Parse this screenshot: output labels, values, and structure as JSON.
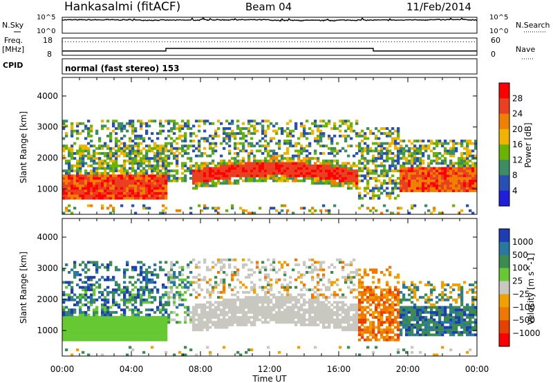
{
  "header": {
    "station": "Hankasalmi (fitACF)",
    "beam": "Beam 04",
    "date": "11/Feb/2014"
  },
  "labels": {
    "nsky": "N.Sky",
    "nsearch": "N.Search",
    "freq_line1": "Freq.",
    "freq_line2": "[MHz]",
    "nave": "Nave",
    "cpid": "CPID",
    "mode": "normal (fast stereo) 153",
    "slant_range": "Slant Range [km]",
    "time_ut": "Time UT"
  },
  "colors": {
    "power_scale": [
      "#1e1edc",
      "#2850b4",
      "#3c8c64",
      "#6ab400",
      "#f0b400",
      "#f08000",
      "#e84020",
      "#ff0000"
    ],
    "velocity_scale": [
      "#1e3cb4",
      "#2878a0",
      "#3c8c50",
      "#66c832",
      "#c8c8c0",
      "#f0a000",
      "#f07800",
      "#e84000",
      "#ff0000"
    ],
    "ground_scatter": "#c8c8c0"
  },
  "chart_data": [
    {
      "type": "line",
      "name": "noise",
      "left_ticks": [
        "10^5",
        "10^0"
      ],
      "right_ticks": [
        "10^5",
        "10^0"
      ],
      "x": [
        "00:00",
        "04:00",
        "08:00",
        "12:00",
        "16:00",
        "20:00",
        "00:00"
      ],
      "series": [
        {
          "name": "N.Sky",
          "values": [
            4.2,
            4.1,
            4.2,
            4.0,
            4.1,
            4.2,
            4.0
          ]
        },
        {
          "name": "N.Search",
          "values": [
            4.0,
            4.0,
            4.1,
            4.0,
            4.0,
            4.1,
            4.0
          ]
        }
      ]
    },
    {
      "type": "line",
      "name": "freq_nave",
      "left_ticks": [
        "18",
        "8"
      ],
      "right_ticks": [
        "60",
        "0"
      ],
      "x_hours": [
        0,
        6,
        6,
        18,
        18,
        24
      ],
      "freq_mhz": [
        10.5,
        10.5,
        12.0,
        12.0,
        10.5,
        10.5
      ],
      "nave": [
        40,
        40,
        40,
        40,
        40,
        40
      ]
    },
    {
      "type": "heatmap",
      "name": "power",
      "ylabel": "Slant Range [km]",
      "y_ticks": [
        1000,
        2000,
        3000,
        4000
      ],
      "ylim": [
        180,
        4600
      ],
      "xlim": [
        0,
        24
      ],
      "x_ticks": [
        "00:00",
        "04:00",
        "08:00",
        "12:00",
        "16:00",
        "20:00",
        "00:00"
      ],
      "colorbar_label": "Power [dB]",
      "colorbar_ticks": [
        4,
        8,
        12,
        16,
        20,
        24,
        28
      ],
      "clim": [
        0,
        32
      ]
    },
    {
      "type": "heatmap",
      "name": "velocity",
      "ylabel": "Slant Range [km]",
      "y_ticks": [
        1000,
        2000,
        3000,
        4000
      ],
      "ylim": [
        180,
        4600
      ],
      "xlim": [
        0,
        24
      ],
      "x_ticks": [
        "00:00",
        "04:00",
        "08:00",
        "12:00",
        "16:00",
        "20:00",
        "00:00"
      ],
      "xlabel": "Time UT",
      "colorbar_label": "Velocity [m s^-1]",
      "colorbar_ticks": [
        "1000",
        "500",
        "100",
        "25",
        "−25",
        "−100",
        "−500",
        "−1000"
      ]
    }
  ]
}
